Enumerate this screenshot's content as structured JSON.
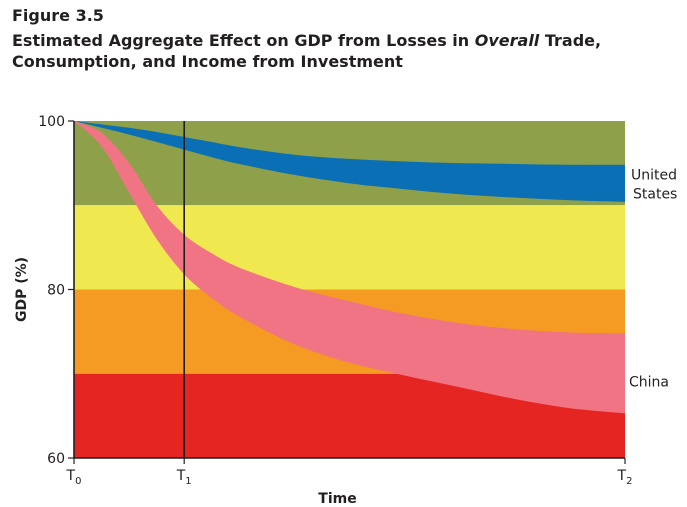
{
  "figure": {
    "label": "Figure 3.5",
    "title_part1": "Estimated Aggregate Effect on GDP from Losses in ",
    "title_emphasis": "Overall",
    "title_part2": " Trade, Consumption, and Income from Investment"
  },
  "chart_data": {
    "type": "area",
    "title": "Estimated Aggregate Effect on GDP from Losses in Overall Trade, Consumption, and Income from Investment",
    "xlabel": "Time",
    "ylabel": "GDP (%)",
    "ylim": [
      60,
      100
    ],
    "x": [
      0,
      0.05,
      0.1,
      0.15,
      0.2,
      0.25,
      0.3,
      0.4,
      0.5,
      0.6,
      0.7,
      0.8,
      0.9,
      1.0
    ],
    "xticks": [
      {
        "value": 0,
        "base": "T",
        "sub": "0"
      },
      {
        "value": 0.2,
        "base": "T",
        "sub": "1"
      },
      {
        "value": 1.0,
        "base": "T",
        "sub": "2"
      }
    ],
    "yticks": [
      {
        "value": 60,
        "label": "60"
      },
      {
        "value": 80,
        "label": "80"
      },
      {
        "value": 100,
        "label": "100"
      }
    ],
    "vertical_marker_x": 0.2,
    "background_bands": [
      {
        "from": 90,
        "to": 100,
        "color": "#8fa04a"
      },
      {
        "from": 80,
        "to": 90,
        "color": "#efe84f"
      },
      {
        "from": 70,
        "to": 80,
        "color": "#f59a23"
      },
      {
        "from": 60,
        "to": 70,
        "color": "#e52521"
      }
    ],
    "series": [
      {
        "name": "United States",
        "label_line1": "United",
        "label_line2": "States",
        "color": "#0a6fb5",
        "upper": [
          100,
          99.6,
          99.2,
          98.7,
          98.1,
          97.5,
          96.9,
          96.0,
          95.5,
          95.2,
          95.0,
          94.9,
          94.8,
          94.8
        ],
        "lower": [
          100,
          99.2,
          98.4,
          97.5,
          96.6,
          95.7,
          94.9,
          93.6,
          92.6,
          91.9,
          91.3,
          90.9,
          90.6,
          90.4
        ]
      },
      {
        "name": "China",
        "label_line1": "China",
        "label_line2": "",
        "color": "#f07483",
        "upper": [
          100,
          98.6,
          95.0,
          90.0,
          86.5,
          84.3,
          82.6,
          80.3,
          78.6,
          77.1,
          76.0,
          75.3,
          74.9,
          74.8
        ],
        "lower": [
          100,
          97.0,
          91.5,
          86.0,
          81.8,
          79.0,
          76.8,
          73.5,
          71.3,
          69.8,
          68.4,
          67.0,
          65.9,
          65.3
        ]
      }
    ]
  }
}
